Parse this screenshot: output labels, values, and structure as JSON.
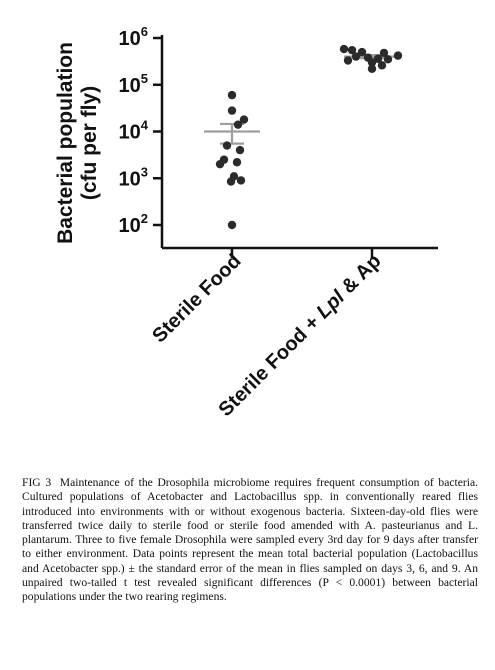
{
  "chart_data": {
    "type": "scatter",
    "title": "",
    "ylabel_line1": "Bacterial population",
    "ylabel_line2": "(cfu per fly)",
    "yscale": "log",
    "ylim": [
      50,
      1500000
    ],
    "yticks": [
      {
        "value": 100,
        "base": "10",
        "exp": "2"
      },
      {
        "value": 1000,
        "base": "10",
        "exp": "3"
      },
      {
        "value": 10000,
        "base": "10",
        "exp": "4"
      },
      {
        "value": 100000,
        "base": "10",
        "exp": "5"
      },
      {
        "value": 1000000,
        "base": "10",
        "exp": "6"
      }
    ],
    "categories": [
      "Sterile Food",
      "Sterile Food + Lpl & Ap"
    ],
    "series": [
      {
        "category": "Sterile Food",
        "values": [
          60000,
          28000,
          18000,
          14000,
          5000,
          4000,
          2500,
          2200,
          2000,
          1100,
          900,
          850,
          100
        ],
        "mean": 10000,
        "sem_upper": 14500,
        "sem_lower": 5500
      },
      {
        "category": "Sterile Food + Lpl & Ap",
        "values": [
          580000,
          550000,
          500000,
          480000,
          420000,
          400000,
          380000,
          360000,
          350000,
          330000,
          300000,
          260000,
          220000
        ],
        "mean": 400000,
        "sem_upper": 430000,
        "sem_lower": 370000
      }
    ],
    "colors": {
      "points": "#2b2b2b",
      "mean_bar": "#9e9e9e",
      "axis": "#111111"
    }
  },
  "caption": {
    "fig_label": "FIG 3",
    "text": "Maintenance of the Drosophila microbiome requires frequent consumption of bacteria. Cultured populations of Acetobacter and Lactobacillus spp. in conventionally reared flies introduced into environments with or without exogenous bacteria. Sixteen-day-old flies were transferred twice daily to sterile food or sterile food amended with A. pasteurianus and L. plantarum. Three to five female Drosophila were sampled every 3rd day for 9 days after transfer to either environment. Data points represent the mean total bacterial population (Lactobacillus and Acetobacter spp.) ± the standard error of the mean in flies sampled on days 3, 6, and 9. An unpaired two-tailed t test revealed significant differences (P < 0.0001) between bacterial populations under the two rearing regimens."
  }
}
